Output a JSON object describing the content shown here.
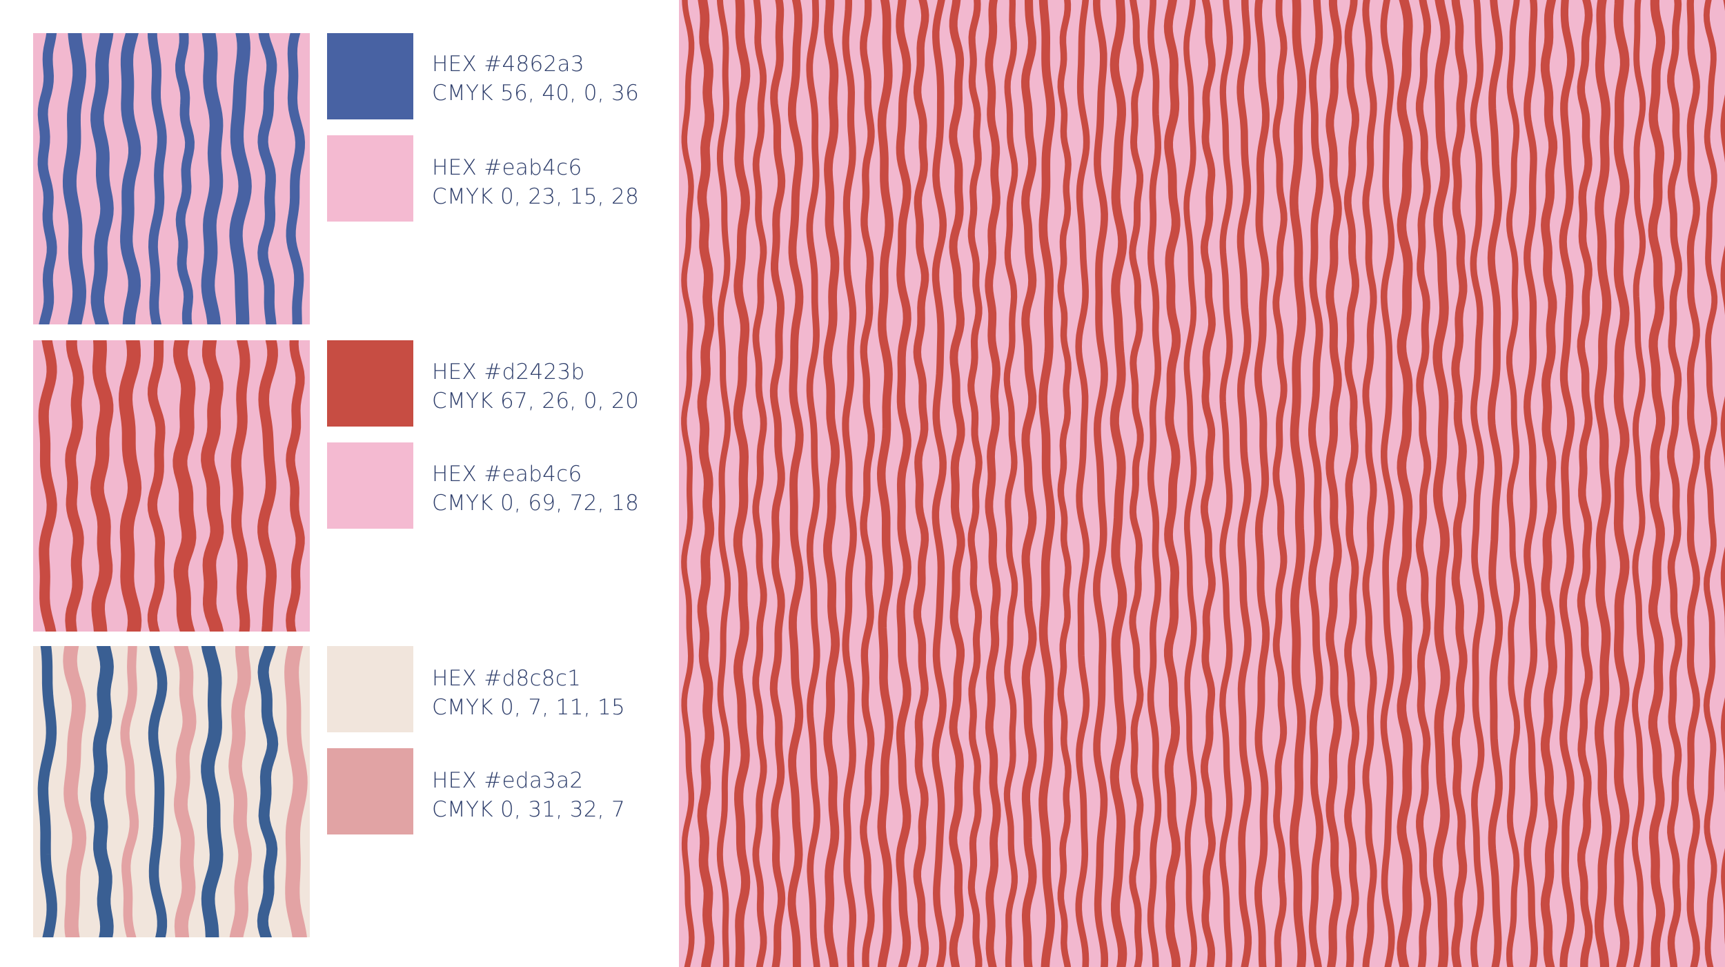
{
  "palettes": [
    {
      "stripe_colors": [
        "#4862a3"
      ],
      "ground": "#f2b8cf",
      "swatches": [
        {
          "color": "#4862a3",
          "hex": "HEX #4862a3",
          "cmyk": "CMYK 56, 40, 0, 36"
        },
        {
          "color": "#f4bad1",
          "hex": "HEX #eab4c6",
          "cmyk": "CMYK 0, 23, 15, 28"
        }
      ]
    },
    {
      "stripe_colors": [
        "#c84b42"
      ],
      "ground": "#f2b8cf",
      "swatches": [
        {
          "color": "#c74d43",
          "hex": "HEX #d2423b",
          "cmyk": "CMYK 67, 26, 0, 20"
        },
        {
          "color": "#f4bad1",
          "hex": "HEX #eab4c6",
          "cmyk": "CMYK 0, 69, 72, 18"
        }
      ]
    },
    {
      "stripe_colors": [
        "#3a5f93",
        "#e3a3a4"
      ],
      "ground": "#f1e5dc",
      "swatches": [
        {
          "color": "#f1e5dc",
          "hex": "HEX #d8c8c1",
          "cmyk": "CMYK 0, 7, 11, 15"
        },
        {
          "color": "#e1a3a4",
          "hex": "HEX #eda3a2",
          "cmyk": "CMYK 0, 31, 32, 7"
        }
      ]
    }
  ],
  "pattern_preview": {
    "stripe_color": "#c84b42",
    "ground": "#f2b8cf"
  }
}
